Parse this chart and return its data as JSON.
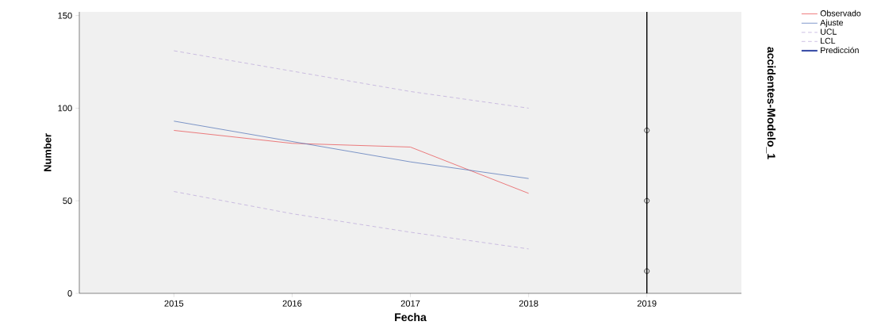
{
  "chart_data": {
    "type": "line",
    "xlabel": "Fecha",
    "ylabel": "Number",
    "y2label": "accidentes-Modelo_1",
    "categories": [
      "2015",
      "2016",
      "2017",
      "2018",
      "2019"
    ],
    "series": [
      {
        "name": "Observado",
        "color": "#e8474a",
        "values": [
          88,
          81,
          79,
          54,
          null
        ]
      },
      {
        "name": "Ajuste",
        "color": "#4a6db5",
        "values": [
          93,
          82,
          71,
          62,
          null
        ]
      },
      {
        "name": "UCL",
        "color": "#b9a5d9",
        "line_style": "dashed",
        "values": [
          131,
          120,
          109,
          100,
          null
        ]
      },
      {
        "name": "LCL",
        "color": "#b9a5d9",
        "line_style": "dashed",
        "values": [
          55,
          43,
          33,
          24,
          null
        ]
      },
      {
        "name": "Predicción",
        "color": "#3b4fa8",
        "values": [
          null,
          null,
          null,
          null,
          null
        ]
      },
      {
        "type": "scatter",
        "color": "#000000",
        "marker": "circle",
        "values": [
          null,
          null,
          null,
          null,
          88
        ]
      },
      {
        "type": "scatter",
        "color": "#000000",
        "marker": "circle",
        "values": [
          null,
          null,
          null,
          null,
          50
        ]
      },
      {
        "type": "scatter",
        "color": "#000000",
        "marker": "circle",
        "values": [
          null,
          null,
          null,
          null,
          12
        ]
      }
    ],
    "ylim": [
      0,
      152
    ],
    "yticks": [
      0,
      50,
      100,
      150
    ],
    "ref_lines": [
      {
        "axis": "x",
        "value": "2019",
        "color": "#000000"
      }
    ],
    "grid": false,
    "legend": "top right"
  }
}
